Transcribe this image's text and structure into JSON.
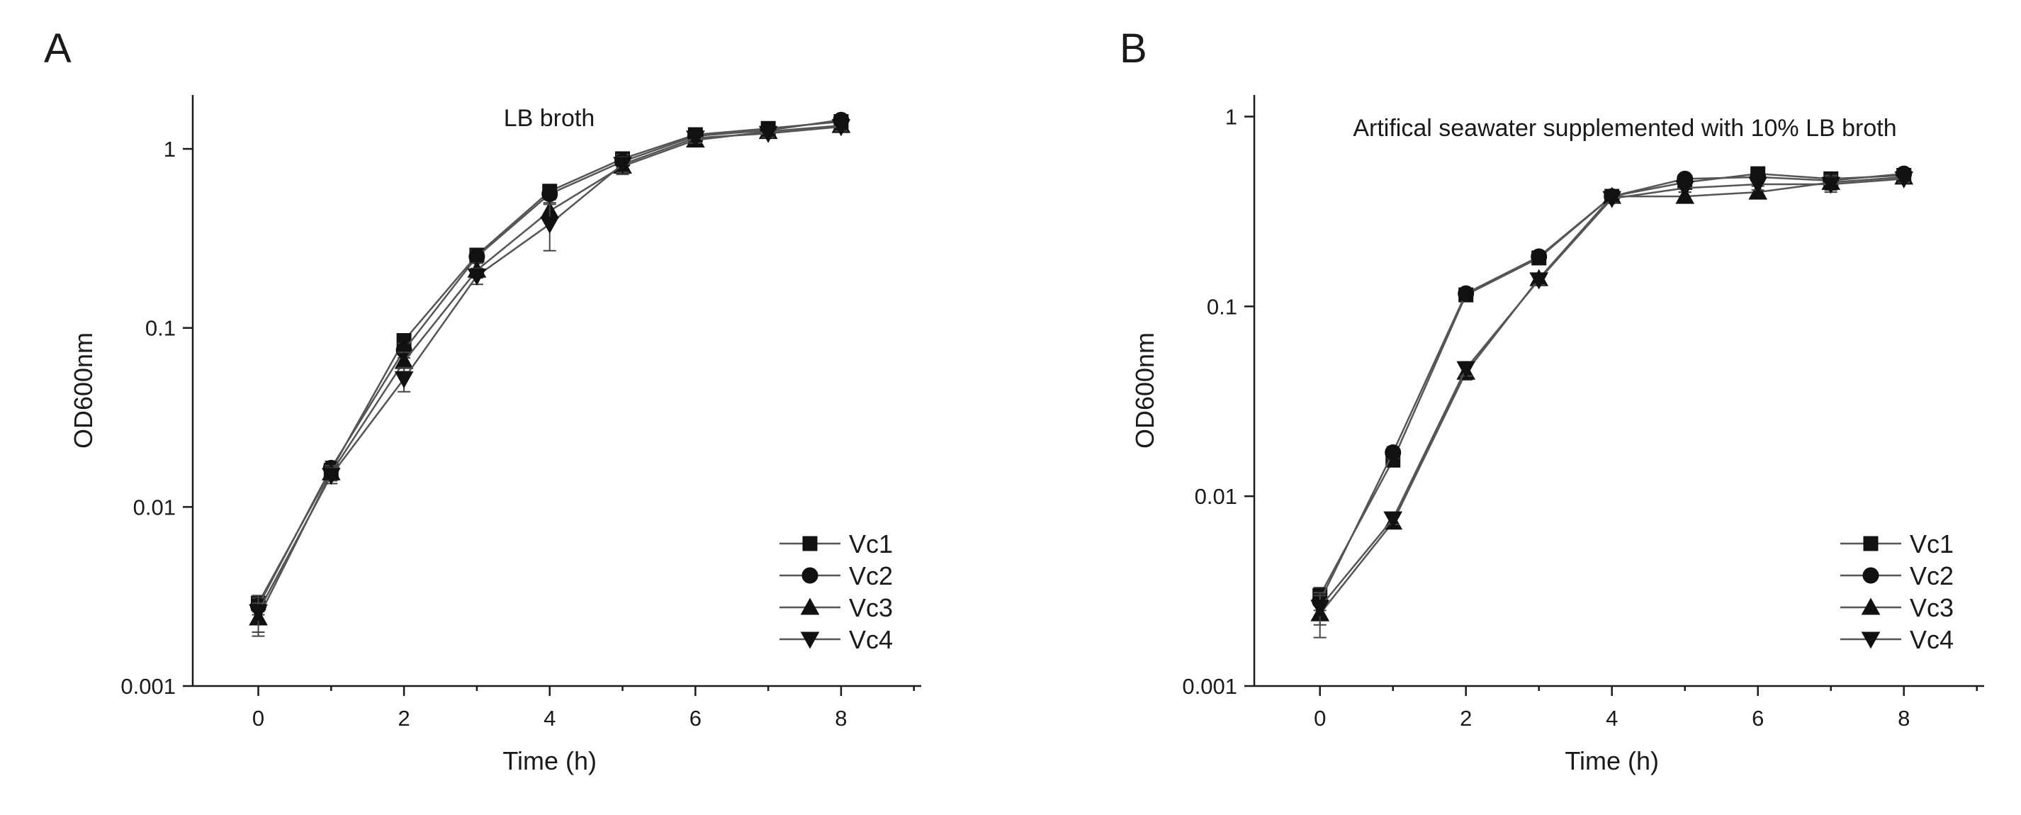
{
  "chart_data": [
    {
      "type": "line",
      "panel_label": "A",
      "title": "LB broth",
      "xlabel": "Time (h)",
      "ylabel": "OD600nm",
      "x_scale": "linear",
      "y_scale": "log",
      "xlim": [
        -0.9,
        9.1
      ],
      "ylim": [
        0.001,
        2.0
      ],
      "x_ticks": [
        0,
        2,
        4,
        6,
        8
      ],
      "x_tick_labels": [
        "0",
        "2",
        "4",
        "6",
        "8"
      ],
      "y_ticks": [
        0.001,
        0.01,
        0.1,
        1
      ],
      "y_tick_labels": [
        "0.001",
        "0.01",
        "0.1",
        "1"
      ],
      "grid": false,
      "legend_position": "bottom-right",
      "x": [
        0,
        1,
        2,
        3,
        4,
        5,
        6,
        7,
        8
      ],
      "series": [
        {
          "name": "Vc1",
          "marker": "square",
          "values": [
            0.0029,
            0.016,
            0.085,
            0.255,
            0.58,
            0.88,
            1.2,
            1.3,
            1.42
          ],
          "errors": [
            0.0003,
            0.0015,
            0.007,
            0.02,
            0.04,
            0.08,
            0.07,
            0.06,
            0.07
          ]
        },
        {
          "name": "Vc2",
          "marker": "circle",
          "values": [
            0.0028,
            0.0165,
            0.075,
            0.25,
            0.56,
            0.85,
            1.18,
            1.27,
            1.45
          ],
          "errors": [
            0.0003,
            0.0015,
            0.007,
            0.02,
            0.04,
            0.08,
            0.07,
            0.06,
            0.07
          ]
        },
        {
          "name": "Vc3",
          "marker": "triangle-up",
          "values": [
            0.0024,
            0.0155,
            0.065,
            0.21,
            0.45,
            0.8,
            1.12,
            1.25,
            1.35
          ],
          "errors": [
            0.0005,
            0.0015,
            0.008,
            0.02,
            0.05,
            0.08,
            0.07,
            0.06,
            0.07
          ]
        },
        {
          "name": "Vc4",
          "marker": "triangle-down",
          "values": [
            0.0026,
            0.015,
            0.052,
            0.195,
            0.38,
            0.82,
            1.15,
            1.22,
            1.33
          ],
          "errors": [
            0.0006,
            0.0015,
            0.008,
            0.02,
            0.11,
            0.08,
            0.07,
            0.06,
            0.07
          ]
        }
      ]
    },
    {
      "type": "line",
      "panel_label": "B",
      "title": "Artifical seawater supplemented with 10% LB broth",
      "xlabel": "Time (h)",
      "ylabel": "OD600nm",
      "x_scale": "linear",
      "y_scale": "log",
      "xlim": [
        -0.9,
        9.1
      ],
      "ylim": [
        0.001,
        1.3
      ],
      "x_ticks": [
        0,
        2,
        4,
        6,
        8
      ],
      "x_tick_labels": [
        "0",
        "2",
        "4",
        "6",
        "8"
      ],
      "y_ticks": [
        0.001,
        0.01,
        0.1,
        1
      ],
      "y_tick_labels": [
        "0.001",
        "0.01",
        "0.1",
        "1"
      ],
      "grid": false,
      "legend_position": "bottom-right",
      "x": [
        0,
        1,
        2,
        3,
        4,
        5,
        6,
        7,
        8
      ],
      "series": [
        {
          "name": "Vc1",
          "marker": "square",
          "values": [
            0.003,
            0.0155,
            0.115,
            0.18,
            0.38,
            0.45,
            0.5,
            0.47,
            0.49
          ],
          "errors": [
            0.0003,
            0.0012,
            0.005,
            0.01,
            0.02,
            0.02,
            0.03,
            0.03,
            0.02
          ]
        },
        {
          "name": "Vc2",
          "marker": "circle",
          "values": [
            0.0028,
            0.017,
            0.117,
            0.183,
            0.38,
            0.47,
            0.48,
            0.46,
            0.5
          ],
          "errors": [
            0.0003,
            0.0012,
            0.005,
            0.01,
            0.02,
            0.02,
            0.03,
            0.03,
            0.02
          ]
        },
        {
          "name": "Vc3",
          "marker": "triangle-up",
          "values": [
            0.0024,
            0.0073,
            0.045,
            0.14,
            0.38,
            0.38,
            0.4,
            0.45,
            0.48
          ],
          "errors": [
            0.0006,
            0.0005,
            0.004,
            0.008,
            0.02,
            0.02,
            0.03,
            0.04,
            0.02
          ]
        },
        {
          "name": "Vc4",
          "marker": "triangle-down",
          "values": [
            0.0026,
            0.0076,
            0.047,
            0.138,
            0.37,
            0.42,
            0.44,
            0.44,
            0.47
          ],
          "errors": [
            0.0005,
            0.0005,
            0.004,
            0.008,
            0.02,
            0.02,
            0.03,
            0.04,
            0.02
          ]
        }
      ]
    }
  ]
}
